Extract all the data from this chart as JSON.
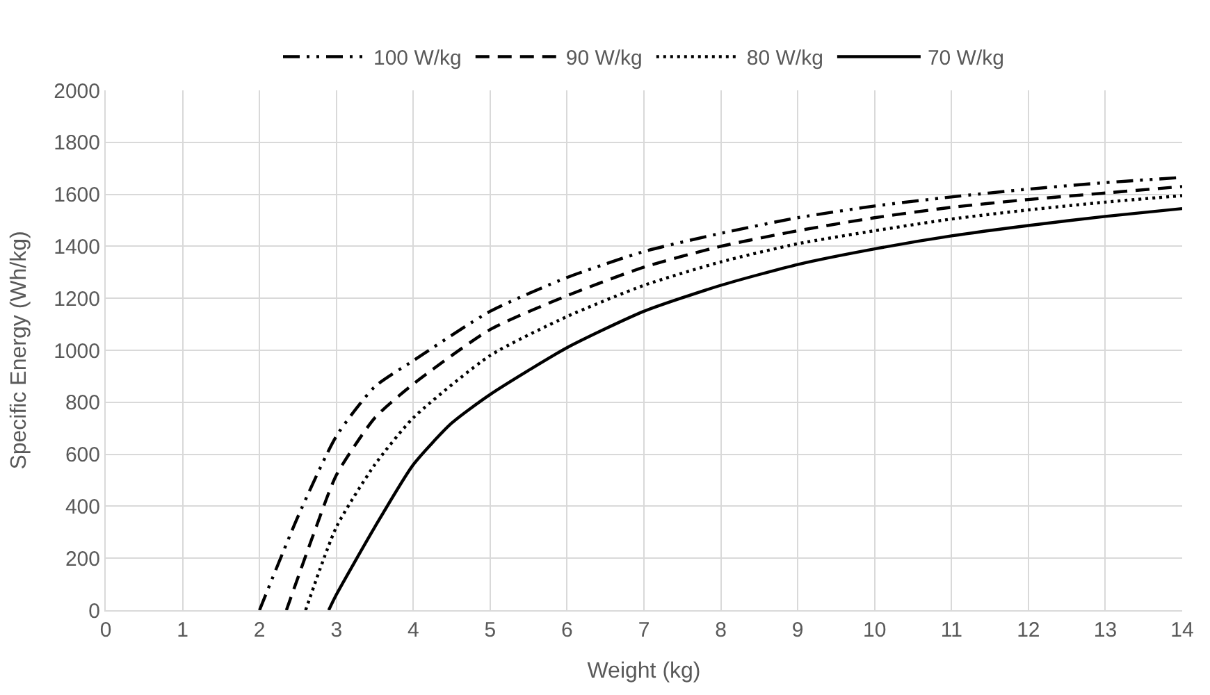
{
  "chart_data": {
    "type": "line",
    "xlabel": "Weight (kg)",
    "ylabel": "Specific Energy (Wh/kg)",
    "xlim": [
      0,
      14
    ],
    "xticks": [
      0,
      1,
      2,
      3,
      4,
      5,
      6,
      7,
      8,
      9,
      10,
      11,
      12,
      13,
      14
    ],
    "ylim": [
      0,
      2000
    ],
    "yticks": [
      0,
      200,
      400,
      600,
      800,
      1000,
      1200,
      1400,
      1600,
      1800,
      2000
    ],
    "grid": true,
    "legend": "top",
    "marker": "none",
    "series": [
      {
        "name": "100 W/kg",
        "color": "#000000",
        "line_style": "dashdotdot",
        "x": [
          2.0,
          2.5,
          3,
          3.5,
          4,
          5,
          6,
          7,
          8,
          9,
          10,
          11,
          12,
          13,
          14
        ],
        "values": [
          0,
          360,
          670,
          860,
          960,
          1150,
          1280,
          1380,
          1450,
          1510,
          1555,
          1590,
          1620,
          1645,
          1665
        ]
      },
      {
        "name": "90 W/kg",
        "color": "#000000",
        "line_style": "dashed",
        "x": [
          2.35,
          2.7,
          3,
          3.5,
          4,
          5,
          6,
          7,
          8,
          9,
          10,
          11,
          12,
          13,
          14
        ],
        "values": [
          0,
          290,
          520,
          740,
          870,
          1080,
          1210,
          1320,
          1400,
          1460,
          1510,
          1550,
          1580,
          1605,
          1630
        ]
      },
      {
        "name": "80 W/kg",
        "color": "#000000",
        "line_style": "dotted",
        "x": [
          2.6,
          3,
          3.5,
          4,
          5,
          6,
          7,
          8,
          9,
          10,
          11,
          12,
          13,
          14
        ],
        "values": [
          0,
          320,
          560,
          740,
          980,
          1130,
          1250,
          1340,
          1410,
          1460,
          1505,
          1540,
          1570,
          1595
        ]
      },
      {
        "name": "70 W/kg",
        "color": "#000000",
        "line_style": "solid",
        "x": [
          2.9,
          3,
          3.5,
          4,
          4.5,
          5,
          6,
          7,
          8,
          9,
          10,
          11,
          12,
          13,
          14
        ],
        "values": [
          0,
          60,
          320,
          560,
          720,
          830,
          1010,
          1150,
          1250,
          1330,
          1390,
          1440,
          1480,
          1515,
          1545
        ]
      }
    ]
  }
}
